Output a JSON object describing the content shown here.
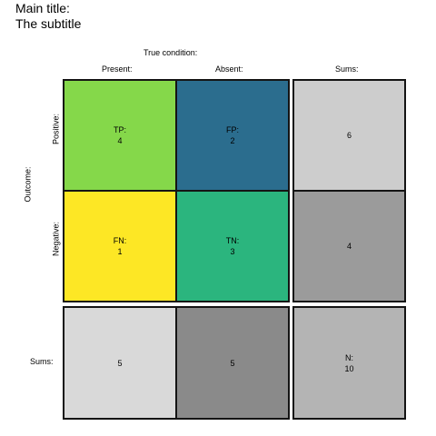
{
  "title": "Main title:",
  "subtitle": "The subtitle",
  "columns": {
    "heading": "True condition:",
    "present": "Present:",
    "absent": "Absent:",
    "sums": "Sums:"
  },
  "rows": {
    "heading": "Outcome:",
    "positive": "Positive:",
    "negative": "Negative:",
    "sums": "Sums:"
  },
  "cells": {
    "tp": {
      "label": "TP:",
      "value": "4",
      "color": "#85d84a"
    },
    "fp": {
      "label": "FP:",
      "value": "2",
      "color": "#2b6d8e"
    },
    "fn": {
      "label": "FN:",
      "value": "1",
      "color": "#fde725"
    },
    "tn": {
      "label": "TN:",
      "value": "3",
      "color": "#2bb57e"
    }
  },
  "row_sums": {
    "positive": {
      "value": "6",
      "color": "#cdcdcd"
    },
    "negative": {
      "value": "4",
      "color": "#9b9b9b"
    }
  },
  "col_sums": {
    "present": {
      "value": "5",
      "color": "#d9d9d9"
    },
    "absent": {
      "value": "5",
      "color": "#8a8a8a"
    }
  },
  "total": {
    "label": "N:",
    "value": "10",
    "color": "#b4b4b4"
  }
}
